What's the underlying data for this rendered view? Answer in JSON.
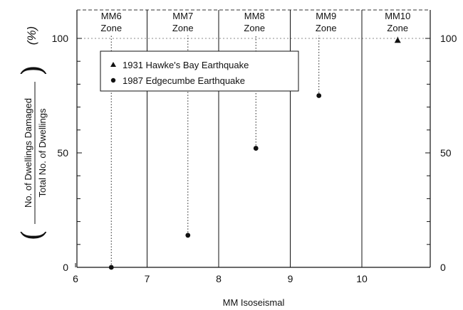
{
  "chart_data": {
    "type": "scatter",
    "xlabel": "MM Isoseismal",
    "ylabel": {
      "numerator": "No. of Dwellings Damaged",
      "denominator": "Total No. of Dwellings",
      "unit": "(%)"
    },
    "xlim": [
      6,
      11
    ],
    "ylim": [
      0,
      100
    ],
    "x_ticks": [
      "6",
      "7",
      "8",
      "9",
      "10"
    ],
    "y_ticks_left": [
      "0",
      "50",
      "100"
    ],
    "y_ticks_right": [
      "0",
      "50",
      "100"
    ],
    "zones": [
      {
        "line1": "MM6",
        "line2": "Zone",
        "x_from": 6,
        "x_to": 7
      },
      {
        "line1": "MM7",
        "line2": "Zone",
        "x_from": 7,
        "x_to": 8
      },
      {
        "line1": "MM8",
        "line2": "Zone",
        "x_from": 8,
        "x_to": 9
      },
      {
        "line1": "MM9",
        "line2": "Zone",
        "x_from": 9,
        "x_to": 10
      },
      {
        "line1": "MM10",
        "line2": "Zone",
        "x_from": 10,
        "x_to": 11
      }
    ],
    "legend_position": "top-left",
    "series": [
      {
        "name": "1931 Hawke's Bay Earthquake",
        "marker": "triangle",
        "points": [
          {
            "x": 10.5,
            "y": 99
          }
        ]
      },
      {
        "name": "1987 Edgecumbe Earthquake",
        "marker": "circle",
        "points": [
          {
            "x": 6.5,
            "y": 0
          },
          {
            "x": 7.57,
            "y": 14
          },
          {
            "x": 8.52,
            "y": 52
          },
          {
            "x": 9.4,
            "y": 75
          }
        ]
      }
    ]
  }
}
